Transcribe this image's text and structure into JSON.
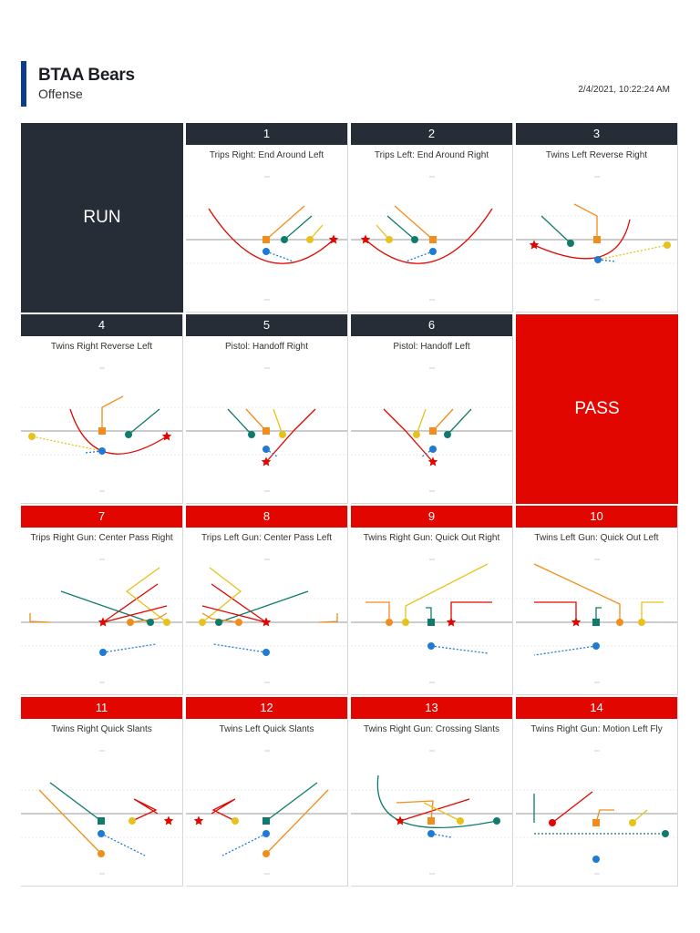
{
  "header": {
    "team": "BTAA Bears",
    "unit": "Offense",
    "timestamp": "2/4/2021, 10:22:24 AM"
  },
  "tiles": [
    {
      "text": "RUN",
      "style": "dark"
    },
    {
      "text": "PASS",
      "style": "red"
    }
  ],
  "plays": [
    {
      "num": "1",
      "name": "Trips Right: End Around Left",
      "accent": "dark"
    },
    {
      "num": "2",
      "name": "Trips Left: End Around Right",
      "accent": "dark"
    },
    {
      "num": "3",
      "name": "Twins Left Reverse Right",
      "accent": "dark"
    },
    {
      "num": "4",
      "name": "Twins Right Reverse Left",
      "accent": "dark"
    },
    {
      "num": "5",
      "name": "Pistol: Handoff Right",
      "accent": "dark"
    },
    {
      "num": "6",
      "name": "Pistol: Handoff Left",
      "accent": "dark"
    },
    {
      "num": "7",
      "name": "Trips Right Gun: Center Pass Right",
      "accent": "red"
    },
    {
      "num": "8",
      "name": "Trips Left Gun: Center Pass Left",
      "accent": "red"
    },
    {
      "num": "9",
      "name": "Twins Right Gun: Quick Out Right",
      "accent": "red"
    },
    {
      "num": "10",
      "name": "Twins Left Gun: Quick Out Left",
      "accent": "red"
    },
    {
      "num": "11",
      "name": "Twins Right Quick Slants",
      "accent": "red"
    },
    {
      "num": "12",
      "name": "Twins Left Quick Slants",
      "accent": "red"
    },
    {
      "num": "13",
      "name": "Twins Right Gun: Crossing Slants",
      "accent": "red"
    },
    {
      "num": "14",
      "name": "Twins Right Gun: Motion Left Fly",
      "accent": "red"
    }
  ],
  "player_colors": {
    "center": "#f28c1b",
    "qb": "#1f7ad6",
    "slot": "#e6c21a",
    "wing": "#0f7b6c",
    "star": "#e10600"
  }
}
